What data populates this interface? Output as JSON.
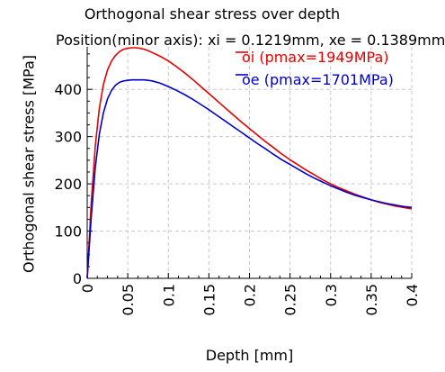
{
  "chart_data": {
    "type": "line",
    "title": "Orthogonal shear stress over depth",
    "subtitle": "Position(minor axis): xi = 0.1219mm, xe = 0.1389mm",
    "xlabel": "Depth [mm]",
    "ylabel": "Orthogonal shear stress [MPa]",
    "xlim": [
      0,
      0.4
    ],
    "ylim": [
      0,
      490
    ],
    "xticks": [
      "0",
      "0.05",
      "0.1",
      "0.15",
      "0.2",
      "0.25",
      "0.3",
      "0.35",
      "0.4"
    ],
    "yticks": [
      "0",
      "100",
      "200",
      "300",
      "400"
    ],
    "grid": true,
    "legend_position": "top-right",
    "series": [
      {
        "name": "oi (pmax=1949MPa)",
        "color": "#e60000",
        "x": [
          0,
          0.005,
          0.01,
          0.015,
          0.02,
          0.025,
          0.03,
          0.035,
          0.04,
          0.045,
          0.05,
          0.055,
          0.06,
          0.065,
          0.07,
          0.075,
          0.08,
          0.09,
          0.1,
          0.11,
          0.12,
          0.13,
          0.14,
          0.15,
          0.16,
          0.17,
          0.18,
          0.19,
          0.2,
          0.21,
          0.22,
          0.23,
          0.24,
          0.25,
          0.26,
          0.27,
          0.28,
          0.29,
          0.3,
          0.31,
          0.32,
          0.33,
          0.34,
          0.35,
          0.36,
          0.37,
          0.38,
          0.39,
          0.4
        ],
        "values": [
          0,
          160,
          280,
          360,
          410,
          441,
          460,
          472,
          480,
          485,
          487,
          488,
          488,
          487,
          485,
          482,
          478,
          470,
          460,
          448,
          435,
          421,
          406,
          391,
          376,
          361,
          346,
          331,
          317,
          303,
          289,
          276,
          263,
          251,
          240,
          229,
          219,
          209,
          200,
          192,
          185,
          178,
          172,
          166,
          161,
          157,
          153,
          150,
          147
        ]
      },
      {
        "name": "oe (pmax=1701MPa)",
        "color": "#0000cc",
        "x": [
          0,
          0.005,
          0.01,
          0.015,
          0.02,
          0.025,
          0.03,
          0.035,
          0.04,
          0.045,
          0.05,
          0.055,
          0.06,
          0.065,
          0.07,
          0.075,
          0.08,
          0.09,
          0.1,
          0.11,
          0.12,
          0.13,
          0.14,
          0.15,
          0.16,
          0.17,
          0.18,
          0.19,
          0.2,
          0.21,
          0.22,
          0.23,
          0.24,
          0.25,
          0.26,
          0.27,
          0.28,
          0.29,
          0.3,
          0.31,
          0.32,
          0.33,
          0.34,
          0.35,
          0.36,
          0.37,
          0.38,
          0.39,
          0.4
        ],
        "values": [
          0,
          130,
          235,
          305,
          350,
          380,
          398,
          409,
          415,
          418,
          419,
          420,
          420,
          420,
          420,
          419,
          418,
          413,
          406,
          398,
          389,
          379,
          368,
          357,
          345,
          333,
          321,
          309,
          297,
          285,
          274,
          262,
          251,
          241,
          231,
          221,
          212,
          204,
          196,
          189,
          182,
          176,
          171,
          166,
          162,
          158,
          155,
          152,
          150
        ]
      }
    ]
  }
}
